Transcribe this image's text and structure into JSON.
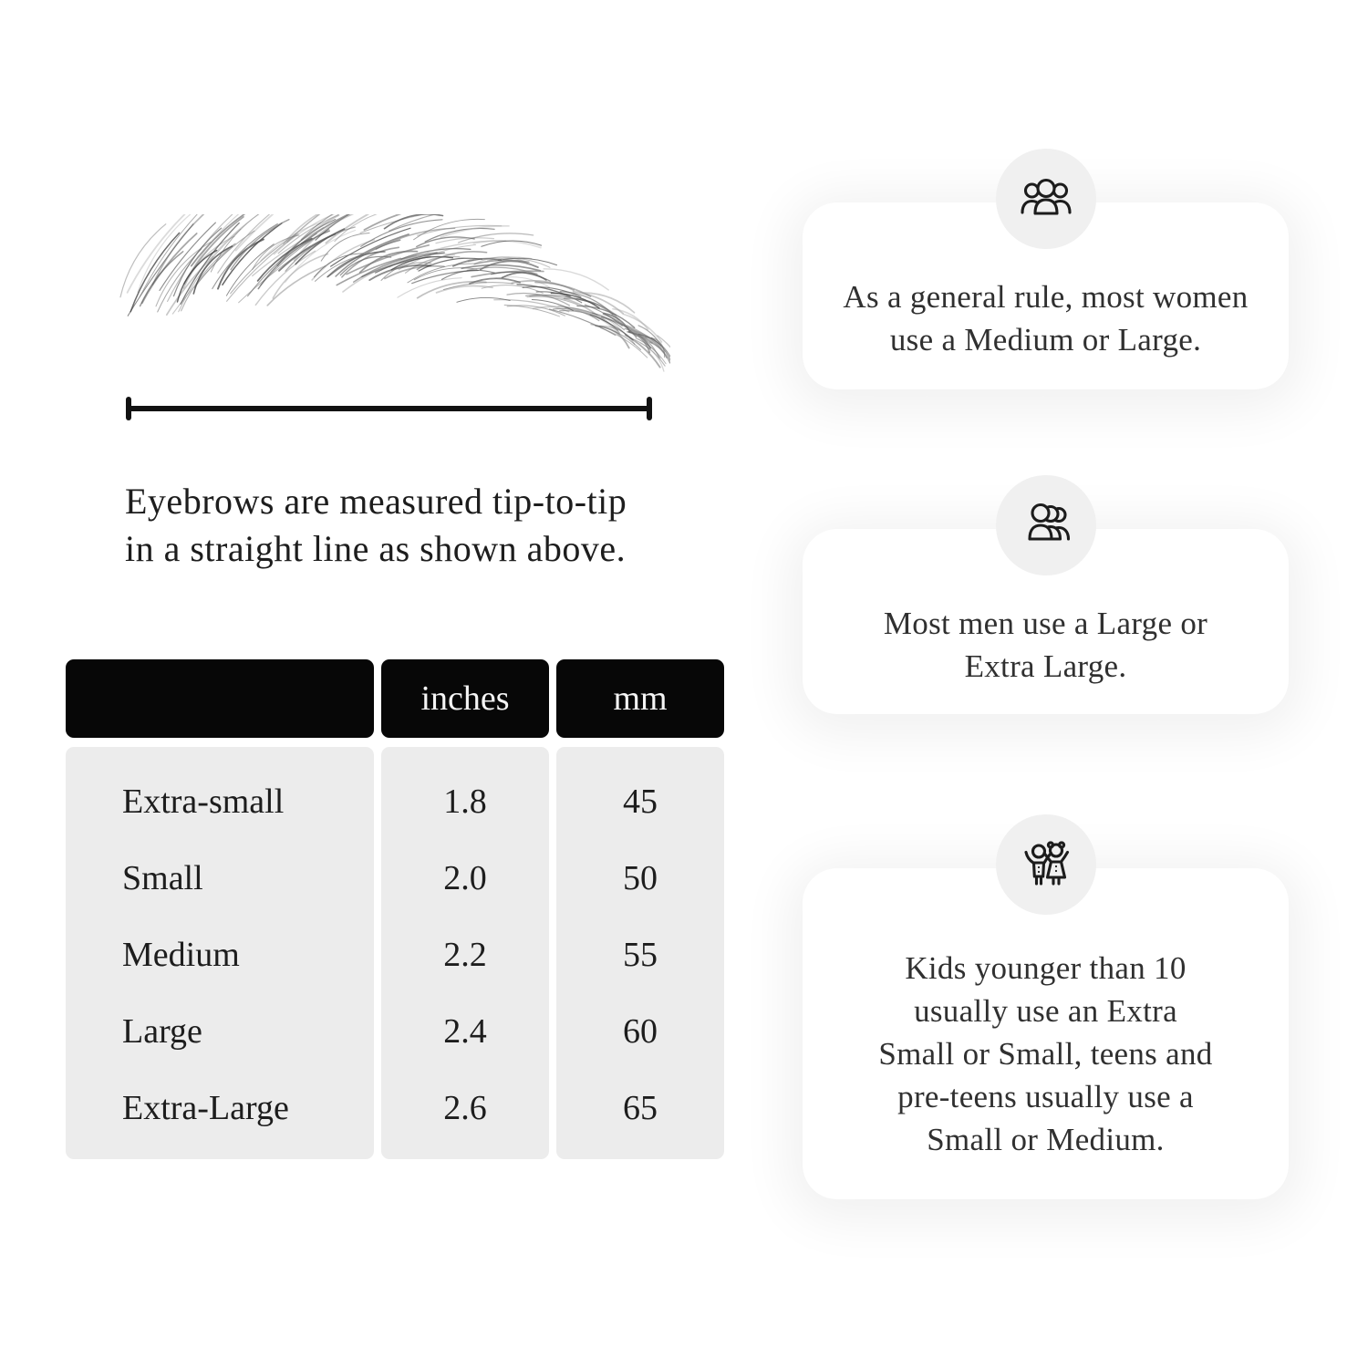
{
  "colors": {
    "background": "#ffffff",
    "table_header_bg": "#070707",
    "table_header_text": "#f4f4f4",
    "table_body_bg": "#ececec",
    "body_text": "#1d1d1d",
    "card_bg": "#ffffff",
    "icon_circle_bg": "#f0f0f0",
    "icon_stroke": "#1c1c1c"
  },
  "measure_section": {
    "caption_line1": "Eyebrows are measured tip-to-tip",
    "caption_line2": "in a straight line as shown above."
  },
  "size_table": {
    "headers": {
      "size": "",
      "inches": "inches",
      "mm": "mm"
    },
    "rows": [
      {
        "label": "Extra-small",
        "inches": "1.8",
        "mm": "45"
      },
      {
        "label": "Small",
        "inches": "2.0",
        "mm": "50"
      },
      {
        "label": "Medium",
        "inches": "2.2",
        "mm": "55"
      },
      {
        "label": "Large",
        "inches": "2.4",
        "mm": "60"
      },
      {
        "label": "Extra-Large",
        "inches": "2.6",
        "mm": "65"
      }
    ]
  },
  "cards": [
    {
      "icon": "women-group-icon",
      "lines": [
        "As a general rule, most women",
        "use a Medium or Large."
      ]
    },
    {
      "icon": "men-group-icon",
      "lines": [
        "Most men use a Large or",
        "Extra Large."
      ]
    },
    {
      "icon": "kids-icon",
      "lines": [
        "Kids younger than 10",
        "usually use an Extra",
        "Small or Small, teens and",
        "pre-teens usually use a",
        "Small or Medium."
      ]
    }
  ]
}
